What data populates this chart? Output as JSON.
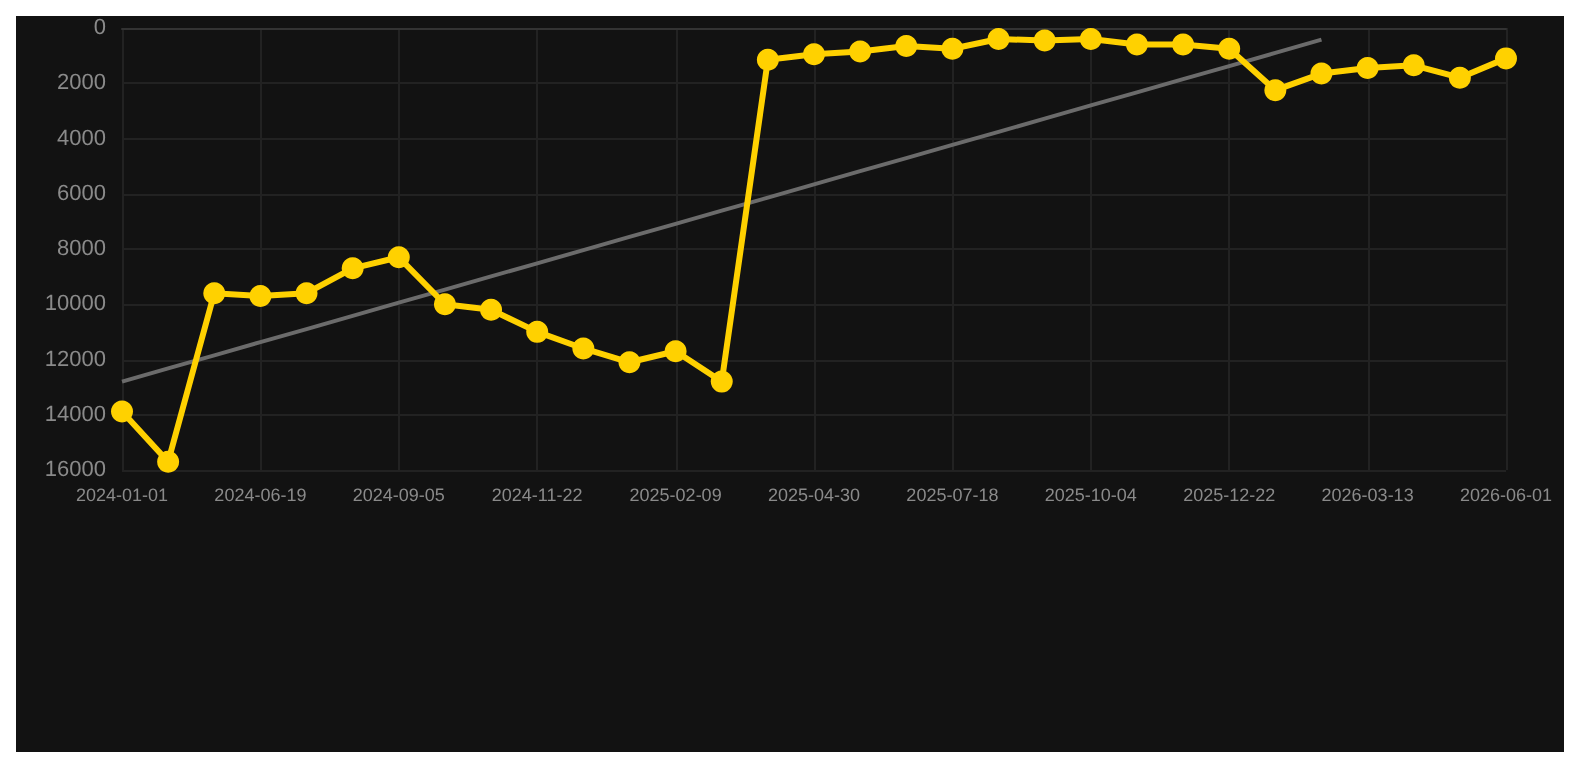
{
  "chart_data": {
    "type": "line",
    "categories": [
      "2024-01-01",
      null,
      null,
      "2024-06-19",
      null,
      null,
      "2024-09-05",
      null,
      null,
      "2024-11-22",
      null,
      null,
      "2025-02-09",
      null,
      null,
      "2025-04-30",
      null,
      null,
      "2025-07-18",
      null,
      null,
      "2025-10-04",
      null,
      null,
      "2025-12-22",
      null,
      null,
      "2026-03-13",
      null,
      null,
      "2026-06-01"
    ],
    "series": [
      {
        "color": "#ffd100",
        "marker": "circle",
        "values": [
          13880,
          15700,
          9600,
          9700,
          9600,
          8700,
          8300,
          10000,
          10200,
          11000,
          11600,
          12100,
          11700,
          12800,
          1150,
          950,
          850,
          650,
          750,
          400,
          450,
          400,
          600,
          600,
          750,
          2250,
          1650,
          1450,
          1350,
          1800,
          1100
        ]
      },
      {
        "color": "#6b6b6b",
        "marker": "none",
        "values": [
          12800,
          12320,
          11850,
          11370,
          10900,
          10420,
          9940,
          9470,
          8990,
          8520,
          8040,
          7560,
          7090,
          6610,
          6140,
          5660,
          5180,
          4710,
          4230,
          3760,
          3280,
          2800,
          2330,
          1850,
          1380,
          900,
          420,
          null,
          null,
          null,
          null
        ]
      }
    ],
    "ylim": [
      16000,
      0
    ],
    "yticks": [
      0,
      2000,
      4000,
      6000,
      8000,
      10000,
      12000,
      14000,
      16000
    ],
    "grid": true
  }
}
